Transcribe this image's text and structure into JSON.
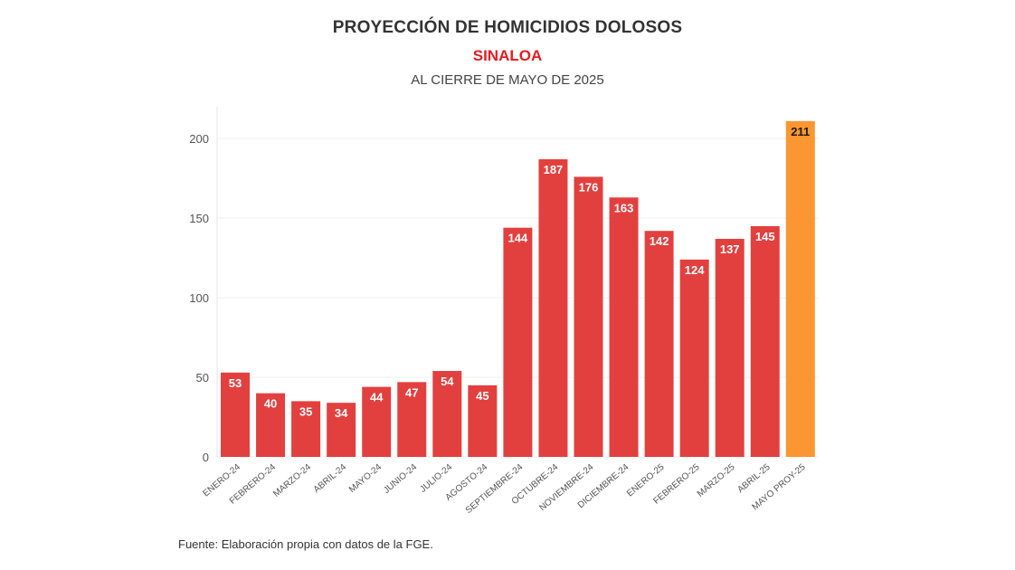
{
  "header": {
    "title": "PROYECCIÓN DE HOMICIDIOS DOLOSOS",
    "subtitle": "SINALOA",
    "subtitle_color": "#e31b23",
    "period": "AL CIERRE DE MAYO DE 2025"
  },
  "footer": {
    "source": "Fuente: Elaboración propia con datos de la FGE."
  },
  "chart_data": {
    "type": "bar",
    "title": "PROYECCIÓN DE HOMICIDIOS DOLOSOS",
    "subtitle": "SINALOA — AL CIERRE DE MAYO DE 2025",
    "xlabel": "",
    "ylabel": "",
    "ylim": [
      0,
      220
    ],
    "yticks": [
      0,
      50,
      100,
      150,
      200
    ],
    "grid": true,
    "legend": "none",
    "categories": [
      "ENERO-24",
      "FEBRERO-24",
      "MARZO-24",
      "ABRIL-24",
      "MAYO-24",
      "JUNIO-24",
      "JULIO-24",
      "AGOSTO-24",
      "SEPTIEMBRE-24",
      "OCTUBRE-24",
      "NOVIEMBRE-24",
      "DICIEMBRE-24",
      "ENERO-25",
      "FEBRERO-25",
      "MARZO-25",
      "ABRIL-25",
      "MAYO PROY-25"
    ],
    "values": [
      53,
      40,
      35,
      34,
      44,
      47,
      54,
      45,
      144,
      187,
      176,
      163,
      142,
      124,
      137,
      145,
      211
    ],
    "colors": {
      "actual": "#e2403f",
      "projection": "#fb9632",
      "label_on_actual": "#ffffff",
      "label_on_projection": "#1a1a1a"
    },
    "projected_index": 16
  }
}
